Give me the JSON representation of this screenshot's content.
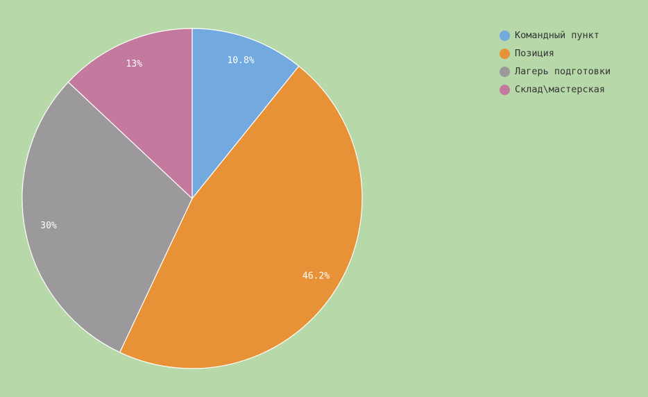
{
  "chart_data": {
    "type": "pie",
    "title": "",
    "legend_position": "top-right",
    "slices": [
      {
        "name": "Командный пункт",
        "value": 10.8,
        "label": "10.8%",
        "color": "#72a9de"
      },
      {
        "name": "Позиция",
        "value": 46.2,
        "label": "46.2%",
        "color": "#e89237"
      },
      {
        "name": "Лагерь подготовки",
        "value": 30,
        "label": "30%",
        "color": "#9b999b"
      },
      {
        "name": "Склад\\мастерская",
        "value": 13,
        "label": "13%",
        "color": "#c47a9e"
      }
    ]
  },
  "colors": {
    "background": "#b7d8a8",
    "slice_border": "#ffffff",
    "label_text": "#ffffff",
    "legend_text": "#333333"
  }
}
